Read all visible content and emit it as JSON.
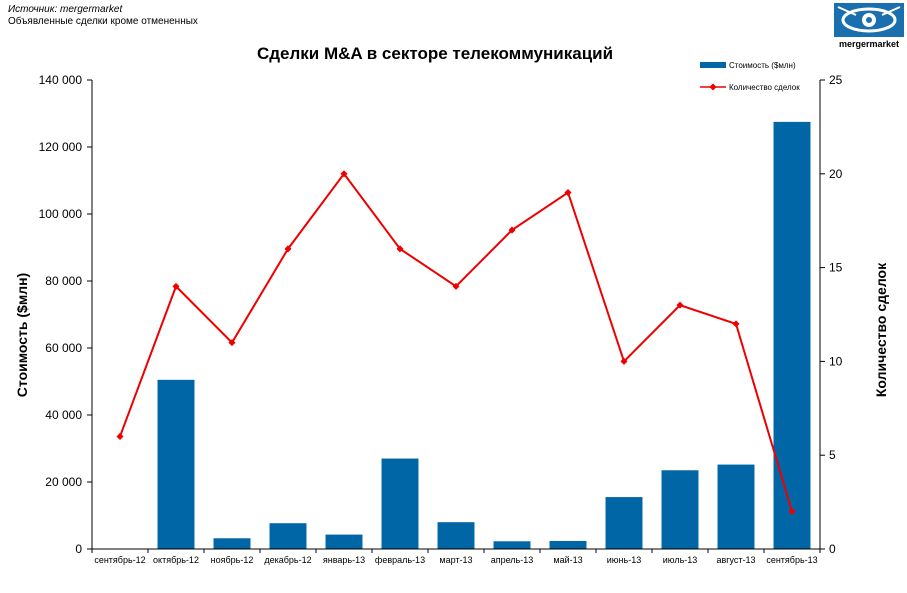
{
  "header": {
    "source": "Источник: mergermarket",
    "subtitle": "Объявленные сделки кроме отмененных",
    "logo_text": "mergermarket"
  },
  "colors": {
    "bar": "#0066a6",
    "line": "#ee0000",
    "logo": "#1a6fae"
  },
  "icons": {
    "logo": "eye-logo-icon"
  },
  "chart_data": {
    "type": "bar",
    "title": "Сделки M&A  в секторе телекоммуникаций",
    "categories": [
      "сентябрь-12",
      "октябрь-12",
      "ноябрь-12",
      "декабрь-12",
      "январь-13",
      "февраль-13",
      "март-13",
      "апрель-13",
      "май-13",
      "июнь-13",
      "июль-13",
      "август-13",
      "сентябрь-13"
    ],
    "series": [
      {
        "name": "Стоимость ($млн)",
        "type": "bar",
        "axis": "left",
        "values": [
          0,
          50500,
          3200,
          7700,
          4300,
          27000,
          8000,
          2300,
          2400,
          15500,
          23500,
          25200,
          127500
        ]
      },
      {
        "name": "Количество сделок",
        "type": "line",
        "axis": "right",
        "values": [
          6,
          14,
          11,
          16,
          20,
          16,
          14,
          17,
          19,
          10,
          13,
          12,
          2
        ]
      }
    ],
    "ylabel": "Стоимость ($млн)",
    "y2label": "Количество сделок",
    "ylim": [
      0,
      140000
    ],
    "y2lim": [
      0,
      25
    ],
    "yticks": [
      "0",
      "20 000",
      "40 000",
      "60 000",
      "80 000",
      "100 000",
      "120 000",
      "140 000"
    ],
    "y2ticks": [
      "0",
      "5",
      "10",
      "15",
      "20",
      "25"
    ],
    "grid": false,
    "legend_position": "top-right"
  }
}
